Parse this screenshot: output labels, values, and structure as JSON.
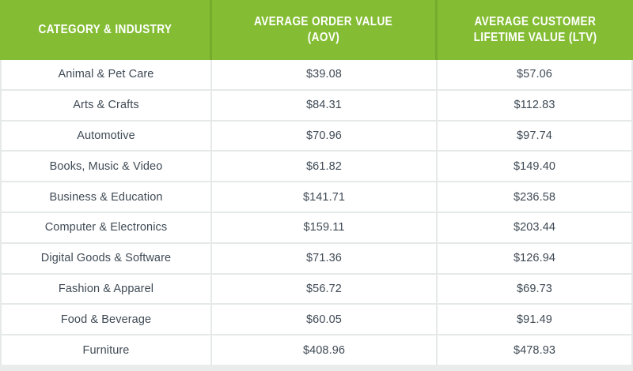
{
  "colors": {
    "header_bg": "#84bd33",
    "header_divider": "#76ab2c",
    "body_border": "#e6e9e9",
    "body_text": "#3f4a55",
    "header_text": "#ffffff",
    "footer_bar": "#eaecec"
  },
  "table": {
    "header": [
      {
        "id": "category",
        "label": "CATEGORY & INDUSTRY",
        "lines": [
          "CATEGORY & INDUSTRY"
        ]
      },
      {
        "id": "aov",
        "label": "AVERAGE ORDER VALUE (AOV)",
        "lines": [
          "AVERAGE ORDER VALUE",
          "(AOV)"
        ]
      },
      {
        "id": "ltv",
        "label": "AVERAGE CUSTOMER LIFETIME VALUE (LTV)",
        "lines": [
          "AVERAGE CUSTOMER",
          "LIFETIME VALUE (LTV)"
        ]
      }
    ],
    "rows": [
      {
        "category": "Animal & Pet Care",
        "aov": "$39.08",
        "ltv": "$57.06"
      },
      {
        "category": "Arts & Crafts",
        "aov": "$84.31",
        "ltv": "$112.83"
      },
      {
        "category": "Automotive",
        "aov": "$70.96",
        "ltv": "$97.74"
      },
      {
        "category": "Books, Music & Video",
        "aov": "$61.82",
        "ltv": "$149.40"
      },
      {
        "category": "Business & Education",
        "aov": "$141.71",
        "ltv": "$236.58"
      },
      {
        "category": "Computer & Electronics",
        "aov": "$159.11",
        "ltv": "$203.44"
      },
      {
        "category": "Digital Goods & Software",
        "aov": "$71.36",
        "ltv": "$126.94"
      },
      {
        "category": "Fashion & Apparel",
        "aov": "$56.72",
        "ltv": "$69.73"
      },
      {
        "category": "Food & Beverage",
        "aov": "$60.05",
        "ltv": "$91.49"
      },
      {
        "category": "Furniture",
        "aov": "$408.96",
        "ltv": "$478.93"
      }
    ]
  },
  "chart_data": {
    "type": "table",
    "title": "Average Order Value and Customer Lifetime Value by Category & Industry",
    "columns": [
      "Category & Industry",
      "Average Order Value (AOV)",
      "Average Customer Lifetime Value (LTV)"
    ],
    "rows": [
      [
        "Animal & Pet Care",
        39.08,
        57.06
      ],
      [
        "Arts & Crafts",
        84.31,
        112.83
      ],
      [
        "Automotive",
        70.96,
        97.74
      ],
      [
        "Books, Music & Video",
        61.82,
        149.4
      ],
      [
        "Business & Education",
        141.71,
        236.58
      ],
      [
        "Computer & Electronics",
        159.11,
        203.44
      ],
      [
        "Digital Goods & Software",
        71.36,
        126.94
      ],
      [
        "Fashion & Apparel",
        56.72,
        69.73
      ],
      [
        "Food & Beverage",
        60.05,
        91.49
      ],
      [
        "Furniture",
        408.96,
        478.93
      ]
    ],
    "currency": "USD"
  }
}
